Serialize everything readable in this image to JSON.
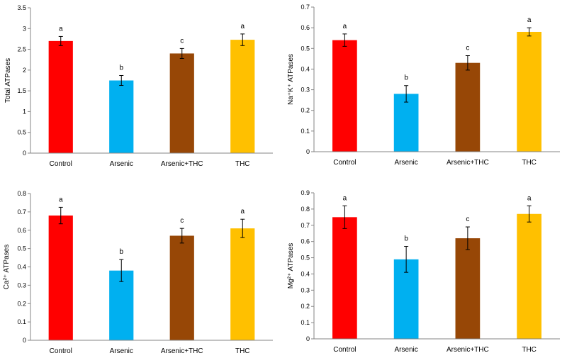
{
  "colors": {
    "Control": "#ff0000",
    "Arsenic": "#00b0f0",
    "Arsenic+THC": "#974706",
    "THC": "#ffc000"
  },
  "chart_data": [
    {
      "type": "bar",
      "ylabel": "Total ATPases",
      "ylim": [
        0,
        3.5
      ],
      "yticks": [
        "0",
        "0.5",
        "1",
        "1.5",
        "2",
        "2.5",
        "3",
        "3.5"
      ],
      "categories": [
        "Control",
        "Arsenic",
        "Arsenic+THC",
        "THC"
      ],
      "values": [
        2.7,
        1.75,
        2.4,
        2.73
      ],
      "errors": [
        0.11,
        0.12,
        0.12,
        0.14
      ],
      "significance": [
        "a",
        "b",
        "c",
        "a"
      ]
    },
    {
      "type": "bar",
      "ylabel": "Na⁺K⁺ ATPases",
      "ylim": [
        0,
        0.7
      ],
      "yticks": [
        "0",
        "0.1",
        "0.2",
        "0.3",
        "0.4",
        "0.5",
        "0.6",
        "0.7"
      ],
      "categories": [
        "Control",
        "Arsenic",
        "Arsenic+THC",
        "THC"
      ],
      "values": [
        0.54,
        0.28,
        0.43,
        0.58
      ],
      "errors": [
        0.03,
        0.04,
        0.035,
        0.02
      ],
      "significance": [
        "a",
        "b",
        "c",
        "a"
      ]
    },
    {
      "type": "bar",
      "ylabel": "Ca²⁺ ATPases",
      "ylim": [
        0,
        0.8
      ],
      "yticks": [
        "0",
        "0.1",
        "0.2",
        "0.3",
        "0.4",
        "0.5",
        "0.6",
        "0.7",
        "0.8"
      ],
      "categories": [
        "Control",
        "Arsenic",
        "Arsenic+THC",
        "THC"
      ],
      "values": [
        0.68,
        0.38,
        0.57,
        0.61
      ],
      "errors": [
        0.045,
        0.06,
        0.04,
        0.05
      ],
      "significance": [
        "a",
        "b",
        "c",
        "a"
      ]
    },
    {
      "type": "bar",
      "ylabel": "Mg²⁺ ATPases",
      "ylim": [
        0,
        0.9
      ],
      "yticks": [
        "0",
        "0.1",
        "0.2",
        "0.3",
        "0.4",
        "0.5",
        "0.6",
        "0.7",
        "0.8",
        "0.9"
      ],
      "categories": [
        "Control",
        "Arsenic",
        "Arsenic+THC",
        "THC"
      ],
      "values": [
        0.75,
        0.49,
        0.62,
        0.77
      ],
      "errors": [
        0.07,
        0.08,
        0.07,
        0.05
      ],
      "significance": [
        "a",
        "b",
        "c",
        "a"
      ]
    }
  ]
}
